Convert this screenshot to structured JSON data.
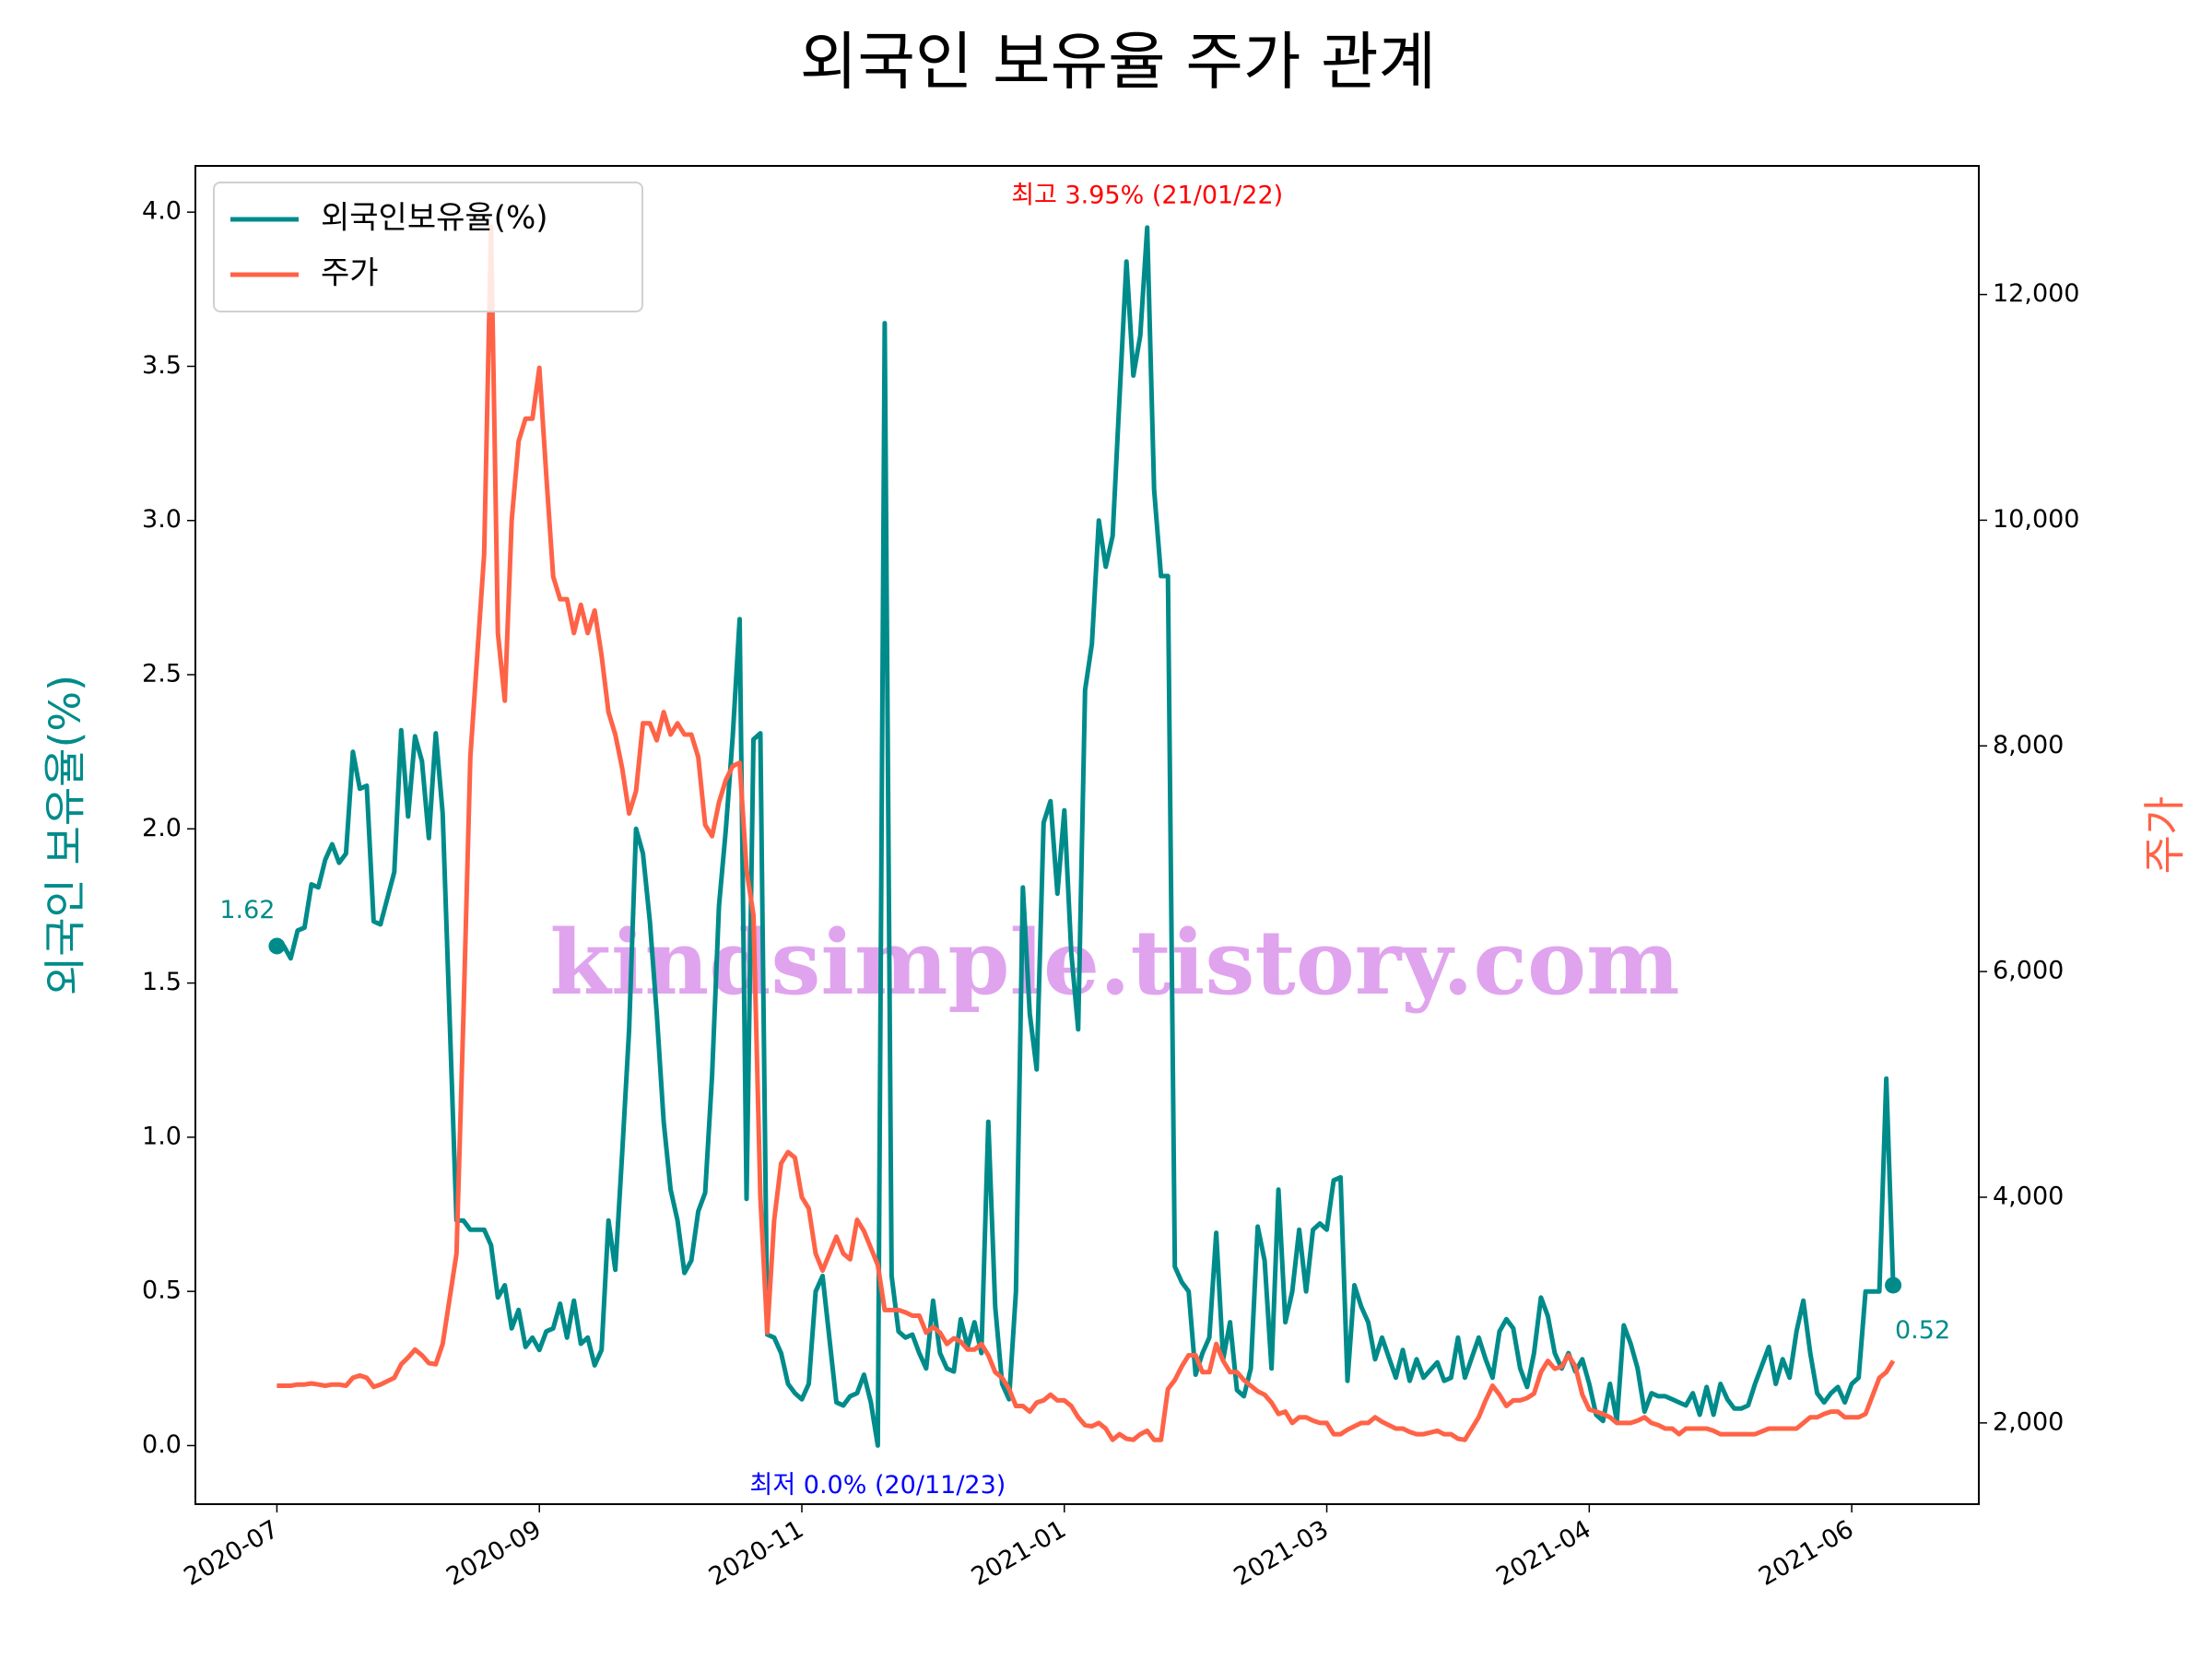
{
  "chart_data": {
    "type": "line",
    "title": "외국인 보유율 주가 관계",
    "ylabel": "외국인 보유율(%)",
    "y2label": "주가",
    "watermark": "kindsimple.tistory.com",
    "legend": "upper left",
    "x": [
      0,
      1,
      2,
      3,
      4,
      5,
      6,
      7,
      8,
      9,
      10,
      11,
      12,
      13,
      14,
      15,
      17,
      18,
      19,
      20,
      21,
      22,
      23,
      24,
      26,
      27,
      28,
      30,
      31,
      32,
      33,
      34,
      35,
      36,
      37,
      38,
      39,
      40,
      41,
      42,
      43,
      44,
      45,
      46,
      47,
      48,
      49,
      50,
      51,
      52,
      53,
      54,
      55,
      56,
      57,
      58,
      59,
      60,
      61,
      62,
      63,
      64,
      65,
      66,
      67,
      68,
      69,
      70,
      71,
      72,
      73,
      74,
      75,
      76,
      77,
      78,
      79,
      81,
      82,
      83,
      84,
      85,
      86,
      87,
      88,
      89,
      90,
      91,
      92,
      93,
      94,
      95,
      96,
      97,
      98,
      99,
      100,
      101,
      102,
      103,
      104,
      105,
      106,
      107,
      108,
      109,
      110,
      111,
      112,
      113,
      114,
      115,
      116,
      117,
      118,
      119,
      120,
      121,
      122,
      123,
      124,
      125,
      126,
      127,
      128,
      129,
      130,
      131,
      132,
      133,
      134,
      135,
      136,
      137,
      138,
      139,
      140,
      141,
      142,
      143,
      144,
      145,
      146,
      147,
      148,
      149,
      150,
      151,
      152,
      153,
      154,
      155,
      156,
      157,
      158,
      159,
      160,
      162,
      163,
      164,
      165,
      166,
      168,
      169,
      170,
      171,
      172,
      174,
      175,
      176,
      177,
      178,
      179,
      180,
      181,
      182,
      183,
      184,
      185,
      186,
      187,
      188,
      189,
      190,
      191,
      192,
      193,
      194,
      195,
      196,
      197,
      198,
      199,
      200,
      201,
      202,
      203,
      204,
      205,
      206,
      207,
      208,
      209,
      210,
      211,
      212,
      213,
      214,
      216,
      217,
      218,
      219,
      220,
      221,
      222,
      223,
      224,
      225,
      226,
      227,
      228,
      229,
      230,
      232,
      233,
      234
    ],
    "xlim": [
      -11.8,
      246.4
    ],
    "xticks": [
      {
        "value": 0,
        "label": "2020-07"
      },
      {
        "value": 38,
        "label": "2020-09"
      },
      {
        "value": 76,
        "label": "2020-11"
      },
      {
        "value": 114,
        "label": "2021-01"
      },
      {
        "value": 152,
        "label": "2021-03"
      },
      {
        "value": 190,
        "label": "2021-04"
      },
      {
        "value": 228,
        "label": "2021-06"
      }
    ],
    "ylim": [
      -0.19,
      4.15
    ],
    "yticks": [
      {
        "value": 0,
        "label": "0.0"
      },
      0.5,
      {
        "value": 1,
        "label": "1.0"
      },
      1.5,
      {
        "value": 2,
        "label": "2.0"
      },
      2.5,
      {
        "value": 3,
        "label": "3.0"
      },
      3.5,
      {
        "value": 4,
        "label": "4.0"
      }
    ],
    "y2lim": [
      1280,
      13140
    ],
    "y2ticks": [
      {
        "value": 2000,
        "label": "2,000"
      },
      {
        "value": 4000,
        "label": "4,000"
      },
      {
        "value": 6000,
        "label": "6,000"
      },
      {
        "value": 8000,
        "label": "8,000"
      },
      {
        "value": 10000,
        "label": "10,000"
      },
      {
        "value": 12000,
        "label": "12,000"
      }
    ],
    "series": [
      {
        "name": "외국인보유율(%)",
        "color": "#008b8b",
        "values": [
          1.62,
          1.62,
          1.58,
          1.67,
          1.68,
          1.82,
          1.81,
          1.9,
          1.95,
          1.89,
          1.92,
          2.25,
          2.13,
          2.14,
          1.7,
          1.69,
          1.86,
          2.32,
          2.04,
          2.3,
          2.22,
          1.97,
          2.31,
          2.05,
          0.73,
          0.73,
          0.7,
          0.7,
          0.65,
          0.48,
          0.52,
          0.38,
          0.44,
          0.32,
          0.35,
          0.31,
          0.37,
          0.38,
          0.46,
          0.35,
          0.47,
          0.33,
          0.35,
          0.26,
          0.31,
          0.73,
          0.57,
          0.95,
          1.35,
          2.0,
          1.92,
          1.7,
          1.4,
          1.05,
          0.83,
          0.73,
          0.56,
          0.6,
          0.76,
          0.82,
          1.2,
          1.75,
          2.0,
          2.3,
          2.68,
          0.8,
          2.29,
          2.31,
          0.36,
          0.35,
          0.3,
          0.2,
          0.17,
          0.15,
          0.2,
          0.5,
          0.55,
          0.14,
          0.13,
          0.16,
          0.17,
          0.23,
          0.14,
          0.0,
          3.64,
          0.55,
          0.37,
          0.35,
          0.36,
          0.3,
          0.25,
          0.47,
          0.3,
          0.25,
          0.24,
          0.41,
          0.32,
          0.4,
          0.3,
          1.05,
          0.45,
          0.2,
          0.15,
          0.5,
          1.81,
          1.4,
          1.22,
          2.02,
          2.09,
          1.79,
          2.06,
          1.6,
          1.35,
          2.45,
          2.6,
          3.0,
          2.85,
          2.95,
          3.4,
          3.84,
          3.47,
          3.6,
          3.95,
          3.1,
          2.82,
          2.82,
          0.58,
          0.53,
          0.5,
          0.23,
          0.3,
          0.35,
          0.69,
          0.28,
          0.4,
          0.18,
          0.16,
          0.25,
          0.71,
          0.6,
          0.25,
          0.83,
          0.4,
          0.5,
          0.7,
          0.5,
          0.7,
          0.72,
          0.7,
          0.86,
          0.87,
          0.21,
          0.52,
          0.45,
          0.4,
          0.28,
          0.35,
          0.22,
          0.31,
          0.21,
          0.28,
          0.22,
          0.27,
          0.21,
          0.22,
          0.35,
          0.22,
          0.35,
          0.28,
          0.22,
          0.37,
          0.41,
          0.38,
          0.25,
          0.19,
          0.3,
          0.48,
          0.42,
          0.3,
          0.25,
          0.3,
          0.24,
          0.28,
          0.2,
          0.1,
          0.08,
          0.2,
          0.08,
          0.39,
          0.33,
          0.25,
          0.11,
          0.17,
          0.16,
          0.16,
          0.15,
          0.14,
          0.13,
          0.17,
          0.1,
          0.19,
          0.1,
          0.2,
          0.15,
          0.12,
          0.12,
          0.13,
          0.2,
          0.32,
          0.2,
          0.28,
          0.22,
          0.37,
          0.47,
          0.3,
          0.17,
          0.14,
          0.17,
          0.19,
          0.14,
          0.2,
          0.22,
          0.5,
          0.5,
          1.19,
          0.52
        ]
      },
      {
        "name": "주가",
        "color": "#ff6347",
        "axis": "y2",
        "values": [
          2330,
          2330,
          2330,
          2340,
          2340,
          2350,
          2340,
          2330,
          2340,
          2340,
          2330,
          2400,
          2420,
          2400,
          2320,
          2340,
          2400,
          2520,
          2580,
          2650,
          2600,
          2530,
          2520,
          2700,
          3500,
          5600,
          7900,
          9700,
          12600,
          9000,
          8400,
          10000,
          10700,
          10900,
          10900,
          11350,
          10400,
          9500,
          9300,
          9300,
          9000,
          9250,
          9000,
          9200,
          8800,
          8300,
          8100,
          7800,
          7400,
          7600,
          8200,
          8200,
          8050,
          8300,
          8100,
          8200,
          8100,
          8100,
          7900,
          7300,
          7200,
          7500,
          7700,
          7820,
          7850,
          6900,
          6500,
          4000,
          2800,
          3800,
          4300,
          4400,
          4350,
          4000,
          3900,
          3500,
          3350,
          3650,
          3500,
          3450,
          3800,
          3700,
          3550,
          3400,
          3000,
          3000,
          3000,
          2980,
          2950,
          2950,
          2800,
          2850,
          2800,
          2700,
          2750,
          2720,
          2650,
          2650,
          2700,
          2600,
          2450,
          2400,
          2300,
          2150,
          2150,
          2100,
          2180,
          2200,
          2250,
          2200,
          2200,
          2150,
          2050,
          1980,
          1970,
          2000,
          1950,
          1850,
          1900,
          1860,
          1850,
          1900,
          1930,
          1850,
          1850,
          2300,
          2380,
          2500,
          2600,
          2600,
          2450,
          2450,
          2700,
          2550,
          2450,
          2450,
          2380,
          2330,
          2280,
          2250,
          2180,
          2080,
          2100,
          2000,
          2050,
          2050,
          2020,
          2000,
          2000,
          1900,
          1900,
          1940,
          1970,
          2000,
          2000,
          2050,
          2010,
          1950,
          1950,
          1920,
          1900,
          1900,
          1930,
          1900,
          1900,
          1860,
          1850,
          2050,
          2200,
          2330,
          2250,
          2150,
          2200,
          2200,
          2220,
          2260,
          2450,
          2550,
          2480,
          2500,
          2600,
          2500,
          2250,
          2120,
          2100,
          2080,
          2050,
          2000,
          2000,
          2000,
          2020,
          2050,
          2000,
          1980,
          1950,
          1950,
          1900,
          1950,
          1950,
          1950,
          1950,
          1930,
          1900,
          1900,
          1900,
          1900,
          1900,
          1900,
          1950,
          1950,
          1950,
          1950,
          1950,
          2000,
          2050,
          2050,
          2080,
          2100,
          2100,
          2050,
          2050,
          2050,
          2080,
          2400,
          2450,
          2550
        ]
      }
    ],
    "annotations": [
      {
        "text": "최고 3.95% (21/01/22)",
        "color": "#ff0000"
      },
      {
        "text": "최저 0.0% (20/11/23)",
        "color": "#0000ff"
      },
      {
        "text": "1.62",
        "color": "#008b8b"
      },
      {
        "text": "0.52",
        "color": "#008b8b"
      }
    ]
  }
}
